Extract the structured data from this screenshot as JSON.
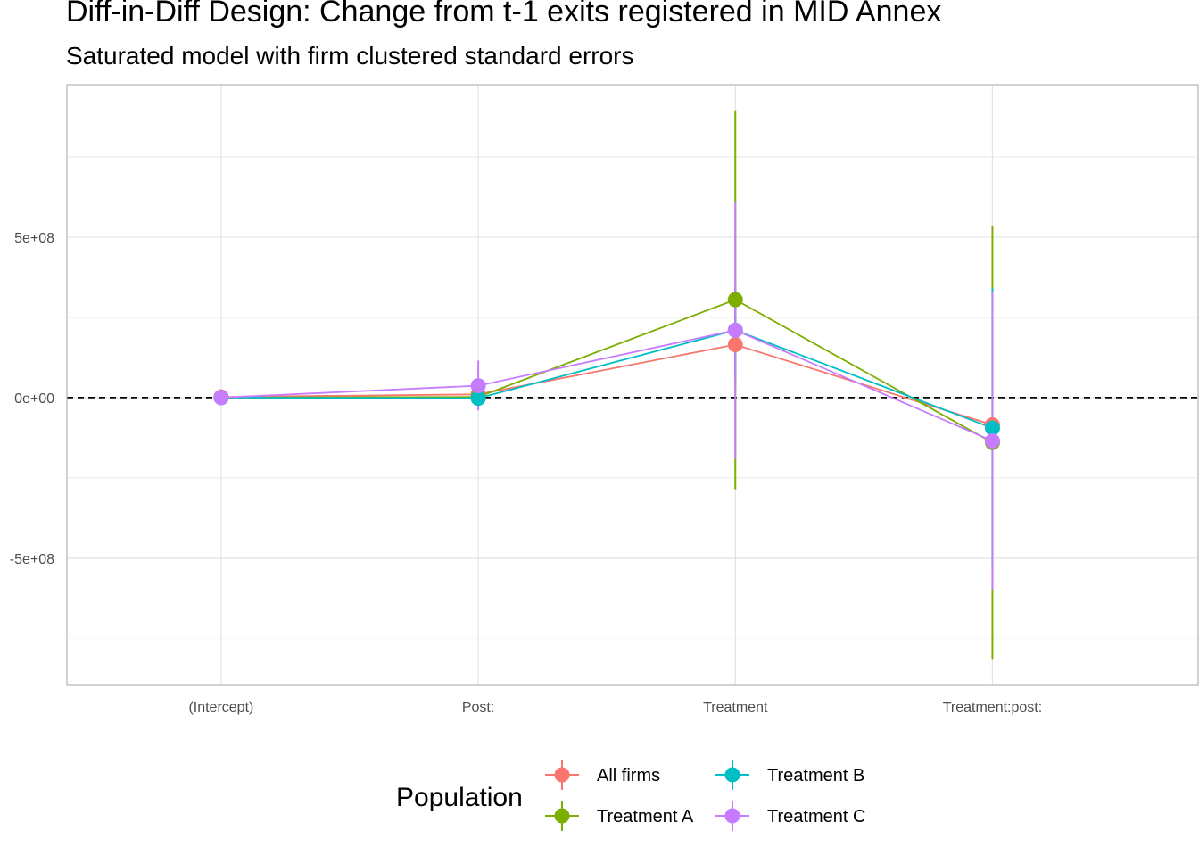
{
  "chart_data": {
    "type": "line",
    "title": "Diff-in-Diff Design: Change from t-1 exits registered in MID Annex",
    "subtitle": "Saturated model with firm clustered standard errors",
    "xlabel": "",
    "ylabel": "",
    "categories": [
      "(Intercept)",
      "Post:",
      "Treatment",
      "Treatment:post:"
    ],
    "y_ticks": [
      -500000000,
      0,
      500000000
    ],
    "y_tick_labels": [
      "-5e+08",
      "0e+00",
      "5e+08"
    ],
    "ylim": [
      -895000000,
      975000000
    ],
    "reference_line": 0,
    "grid": true,
    "legend": {
      "title": "Population",
      "position": "bottom"
    },
    "series": [
      {
        "name": "All firms",
        "color": "#F8766D",
        "values": [
          2000000,
          10000000,
          165000000,
          -85000000
        ],
        "lower": [
          -3000000,
          0,
          20000000,
          -160000000
        ],
        "upper": [
          7000000,
          20000000,
          310000000,
          -10000000
        ]
      },
      {
        "name": "Treatment A",
        "color": "#7CAE00",
        "values": [
          0,
          2000000,
          305000000,
          -140000000
        ],
        "lower": [
          -5000000,
          -5000000,
          -285000000,
          -815000000
        ],
        "upper": [
          5000000,
          9000000,
          895000000,
          535000000
        ]
      },
      {
        "name": "Treatment B",
        "color": "#00BFC4",
        "values": [
          0,
          -2000000,
          210000000,
          -95000000
        ],
        "lower": [
          -5000000,
          -10000000,
          60000000,
          -530000000
        ],
        "upper": [
          5000000,
          6000000,
          360000000,
          340000000
        ]
      },
      {
        "name": "Treatment C",
        "color": "#C77CFF",
        "values": [
          0,
          37000000,
          210000000,
          -135000000
        ],
        "lower": [
          -5000000,
          -40000000,
          -190000000,
          -600000000
        ],
        "upper": [
          5000000,
          115000000,
          610000000,
          330000000
        ]
      }
    ]
  }
}
